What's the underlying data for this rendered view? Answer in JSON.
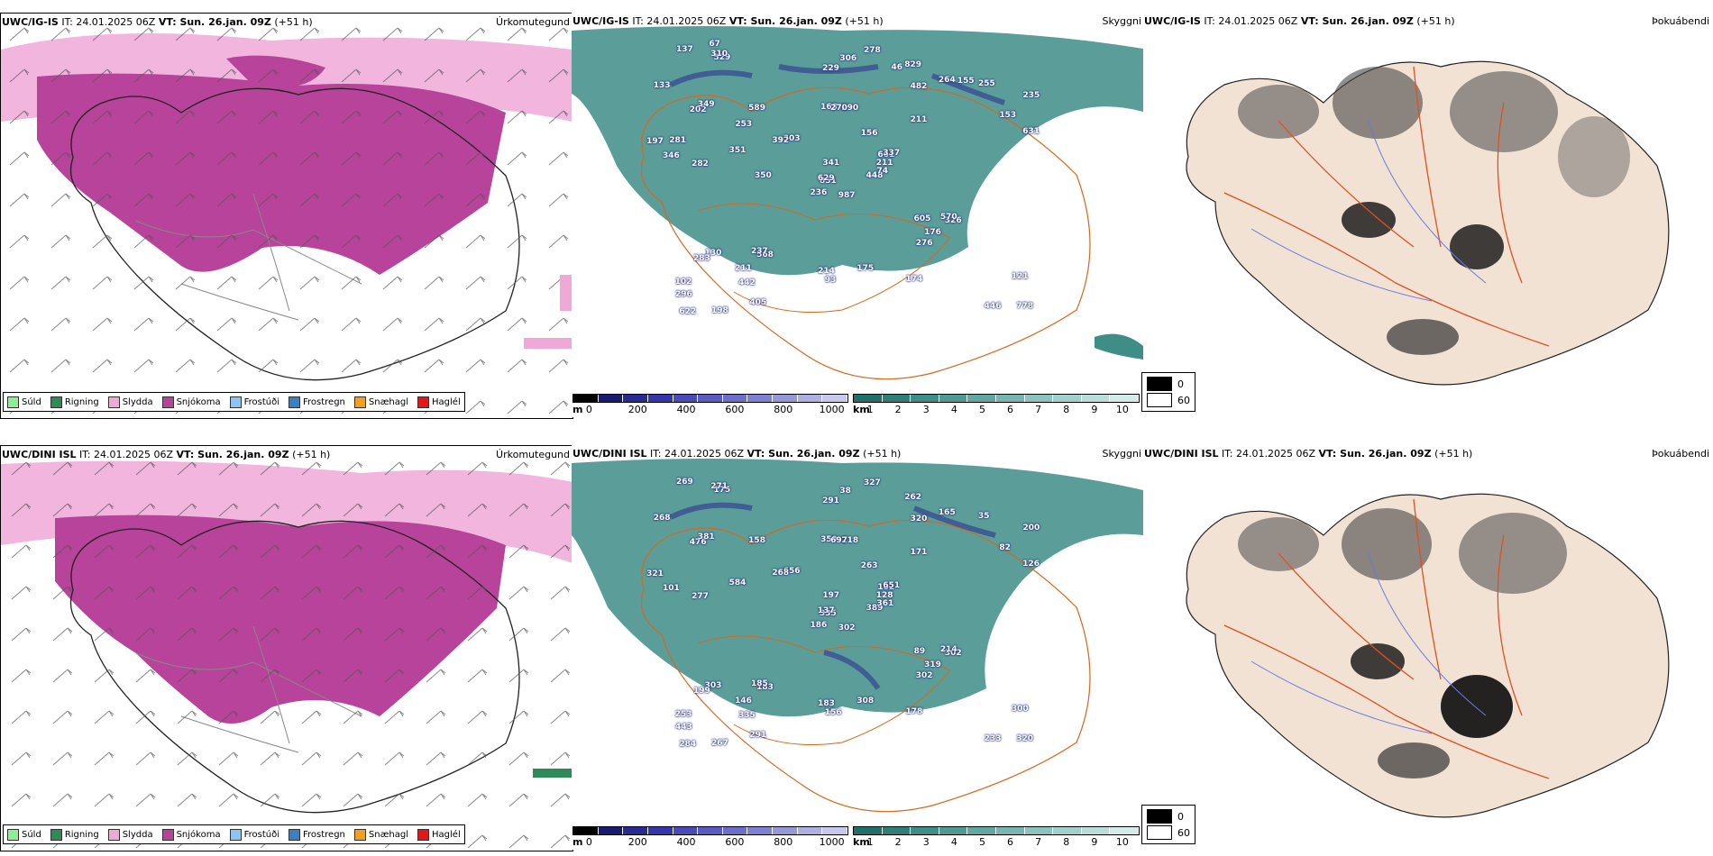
{
  "rows": [
    {
      "precip": {
        "model": "UWC/IG-IS",
        "it": "IT: 24.01.2025 06Z",
        "vt": "VT: Sun. 26.jan. 09Z",
        "lead": "(+51 h)",
        "title": "Úrkomutegund"
      },
      "clouds": {
        "model": "UWC/IG-IS",
        "it": "IT: 24.01.2025 06Z",
        "vt": "VT: Sun. 26.jan. 09Z",
        "lead": "(+51 h)",
        "title": "Skyggni",
        "labels": [
          "987",
          "202",
          "851",
          "102",
          "661",
          "568",
          "829",
          "290",
          "482",
          "448",
          "529",
          "778",
          "282",
          "235",
          "236",
          "211",
          "198",
          "168",
          "156",
          "130",
          "303",
          "296",
          "442",
          "270",
          "337",
          "326",
          "349",
          "229",
          "346",
          "605",
          "631",
          "629",
          "214",
          "341",
          "589",
          "264",
          "237",
          "446",
          "121",
          "570",
          "278",
          "392",
          "351",
          "276",
          "405",
          "197",
          "211",
          "622",
          "93",
          "74",
          "283",
          "153",
          "133",
          "176",
          "174",
          "211",
          "310",
          "137",
          "175",
          "255",
          "306",
          "350",
          "281",
          "253",
          "155",
          "67",
          "46"
        ]
      },
      "fog": {
        "model": "UWC/IG-IS",
        "it": "IT: 24.01.2025 06Z",
        "vt": "VT: Sun. 26.jan. 09Z",
        "lead": "(+51 h)",
        "title": "Þokuábendi"
      }
    },
    {
      "precip": {
        "model": "UWC/DINI ISL",
        "it": "IT: 24.01.2025 06Z",
        "vt": "VT: Sun. 26.jan. 09Z",
        "lead": "(+51 h)",
        "title": "Úrkomutegund"
      },
      "clouds": {
        "model": "UWC/DINI ISL",
        "it": "IT: 24.01.2025 06Z",
        "vt": "VT: Sun. 26.jan. 09Z",
        "lead": "(+51 h)",
        "title": "Skyggni",
        "labels": [
          "302",
          "476",
          "335",
          "253",
          "102",
          "183",
          "262",
          "218",
          "320",
          "389",
          "175",
          "320",
          "277",
          "200",
          "186",
          "171",
          "267",
          "359",
          "263",
          "303",
          "656",
          "443",
          "335",
          "697",
          "651",
          "302",
          "381",
          "291",
          "101",
          "89",
          "126",
          "137",
          "183",
          "197",
          "158",
          "165",
          "185",
          "233",
          "300",
          "214",
          "327",
          "268",
          "584",
          "302",
          "291",
          "321",
          "128",
          "284",
          "156",
          "361",
          "199",
          "82",
          "268",
          "319",
          "178",
          "146",
          "271",
          "269",
          "308",
          "35",
          "38"
        ]
      },
      "fog": {
        "model": "UWC/DINI ISL",
        "it": "IT: 24.01.2025 06Z",
        "vt": "VT: Sun. 26.jan. 09Z",
        "lead": "(+51 h)",
        "title": "Þokuábendi"
      }
    }
  ],
  "precip_legend": [
    {
      "label": "Súld",
      "color": "#90ee90"
    },
    {
      "label": "Rigning",
      "color": "#2e8b57"
    },
    {
      "label": "Slydda",
      "color": "#f0a8d8"
    },
    {
      "label": "Snjókoma",
      "color": "#b8439a"
    },
    {
      "label": "Frostúði",
      "color": "#8ec5f0"
    },
    {
      "label": "Frostregn",
      "color": "#3a7fc8"
    },
    {
      "label": "Snæhagl",
      "color": "#f0a020"
    },
    {
      "label": "Haglél",
      "color": "#e01818"
    }
  ],
  "height_scale": {
    "unit": "m",
    "ticks": [
      "0",
      "200",
      "400",
      "600",
      "800",
      "1000"
    ],
    "colors": [
      "#000000",
      "#1a1a6e",
      "#2a2a90",
      "#3636a8",
      "#4a4ab8",
      "#5a5ac0",
      "#6e6ec8",
      "#8080d0",
      "#9898d8",
      "#b0b0e0",
      "#c8c8ec"
    ]
  },
  "vis_scale": {
    "unit": "km",
    "ticks": [
      "1",
      "2",
      "3",
      "4",
      "5",
      "6",
      "7",
      "8",
      "9",
      "10"
    ],
    "colors": [
      "#1f6f6a",
      "#2f7f79",
      "#3e8d87",
      "#4f9a94",
      "#62a8a2",
      "#76b5b0",
      "#8cc3be",
      "#a3d0cc",
      "#bbdeda",
      "#d4ebe8"
    ]
  },
  "fog_legend": [
    {
      "label": "0",
      "color": "#000000"
    },
    {
      "label": "60",
      "color": "#ffffff"
    }
  ]
}
